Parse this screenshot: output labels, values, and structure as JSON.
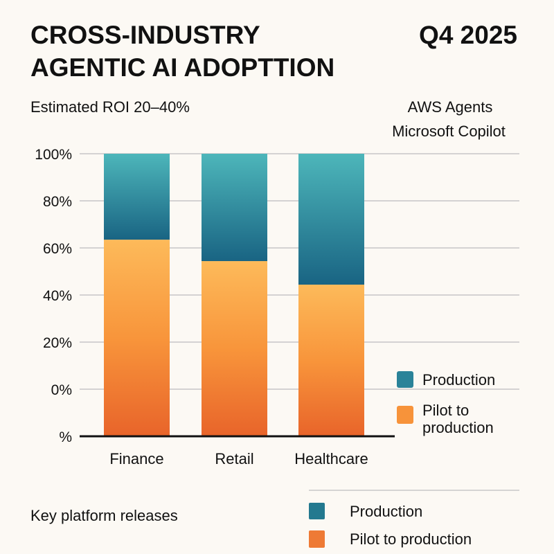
{
  "header": {
    "title_line1": "CROSS-INDUSTRY",
    "title_line2": "AGENTIC AI ADOPTTION",
    "period": "Q4 2025",
    "roi_note": "Estimated ROI 20–40%",
    "platforms": [
      "AWS Agents",
      "Microsoft Copilot"
    ]
  },
  "chart_data": {
    "type": "bar",
    "stacked": true,
    "categories": [
      "Finance",
      "Retail",
      "Healthcare"
    ],
    "series": [
      {
        "name": "Pilot to production",
        "values": [
          63.5,
          54.4,
          44.4
        ],
        "color": "#f28a35"
      },
      {
        "name": "Production",
        "values": [
          36.5,
          45.6,
          55.6
        ],
        "color": "#2a8399"
      }
    ],
    "yticks": [
      {
        "value": -20,
        "label": "%"
      },
      {
        "value": 0,
        "label": "0%"
      },
      {
        "value": 20,
        "label": "20%"
      },
      {
        "value": 40,
        "label": "40%"
      },
      {
        "value": 60,
        "label": "60%"
      },
      {
        "value": 80,
        "label": "80%"
      },
      {
        "value": 100,
        "label": "100%"
      }
    ],
    "ylim": [
      -20,
      100
    ],
    "grid": true,
    "legend_placement": "right",
    "legend": [
      "Production",
      "Pilot to production"
    ]
  },
  "footer": {
    "label": "Key platform releases",
    "legend": [
      {
        "label": "Production",
        "color": "#23798f"
      },
      {
        "label": "Pilot to production",
        "color": "#ee7a35"
      }
    ]
  }
}
